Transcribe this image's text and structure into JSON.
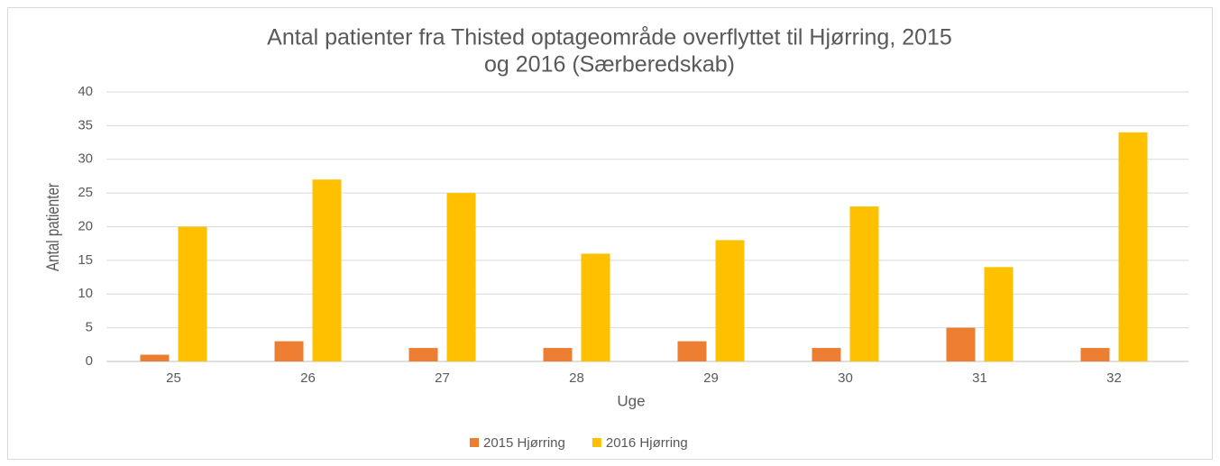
{
  "chart_data": {
    "type": "bar",
    "title": [
      "Antal patienter fra Thisted optageområde overflyttet til Hjørring, 2015",
      "og 2016 (Særberedskab)"
    ],
    "x_label": "Uge",
    "y_label": "Antal patienter",
    "categories": [
      "25",
      "26",
      "27",
      "28",
      "29",
      "30",
      "31",
      "32"
    ],
    "series": [
      {
        "name": "2015 Hjørring",
        "color": "#ed7d31",
        "values": [
          1,
          3,
          2,
          2,
          3,
          2,
          5,
          2
        ]
      },
      {
        "name": "2016 Hjørring",
        "color": "#ffc000",
        "values": [
          20,
          27,
          25,
          16,
          18,
          23,
          14,
          34
        ]
      }
    ],
    "ylim": [
      0,
      40
    ],
    "yticks": [
      0,
      5,
      10,
      15,
      20,
      25,
      30,
      35,
      40
    ],
    "grid": true,
    "legend": "bottom"
  }
}
